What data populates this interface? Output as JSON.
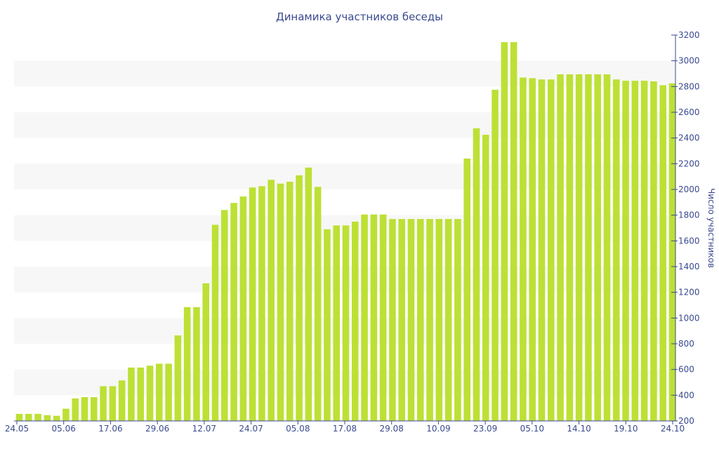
{
  "chart_data": {
    "type": "bar",
    "title": "Динамика участников беседы",
    "xlabel": "",
    "ylabel": "Число участников",
    "ylim": [
      200,
      3200
    ],
    "yticks": [
      200,
      400,
      600,
      800,
      1000,
      1200,
      1400,
      1600,
      1800,
      2000,
      2200,
      2400,
      2600,
      2800,
      3000,
      3200
    ],
    "y_axis_side": "right",
    "grid": "alternating horizontal bands",
    "legend": "none",
    "bar_color": "#bde035",
    "band_color": "#f7f7f7",
    "text_color": "#3a4a8f",
    "xtick_labels": [
      "24.05",
      "05.06",
      "17.06",
      "29.06",
      "12.07",
      "24.07",
      "05.08",
      "17.08",
      "29.08",
      "10.09",
      "23.09",
      "05.10",
      "14.10",
      "19.10",
      "24.10"
    ],
    "values": [
      255,
      255,
      255,
      245,
      240,
      295,
      375,
      385,
      385,
      470,
      470,
      515,
      615,
      615,
      630,
      645,
      645,
      865,
      1085,
      1085,
      1270,
      1725,
      1840,
      1895,
      1945,
      2015,
      2025,
      2075,
      2045,
      2060,
      2110,
      2170,
      2020,
      1690,
      1720,
      1720,
      1750,
      1805,
      1805,
      1805,
      1770,
      1770,
      1770,
      1770,
      1770,
      1770,
      1770,
      1770,
      2240,
      2475,
      2425,
      2775,
      3145,
      3145,
      2870,
      2865,
      2855,
      2855,
      2895,
      2895,
      2895,
      2895,
      2895,
      2895,
      2855,
      2845,
      2845,
      2845,
      2840,
      2810,
      2825
    ]
  }
}
